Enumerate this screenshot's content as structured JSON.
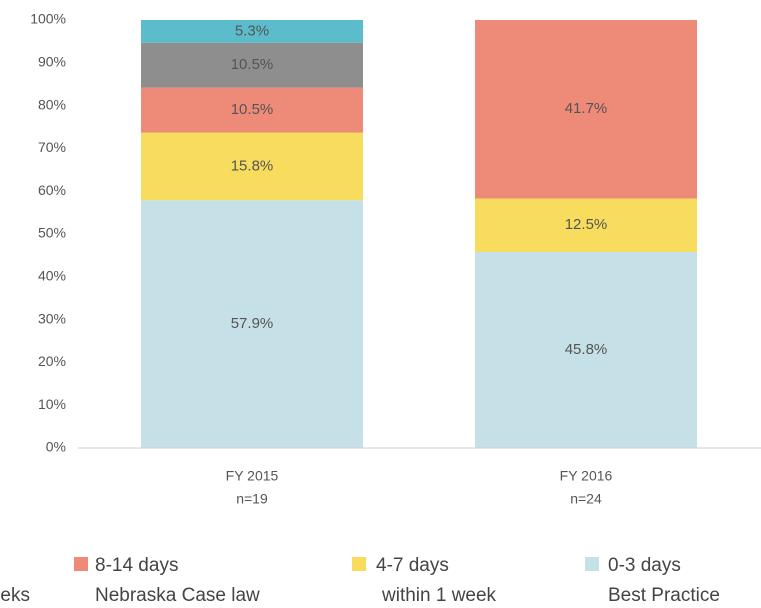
{
  "chart_data": {
    "type": "stacked_bar",
    "categories": [
      "FY 2015",
      "FY 2016"
    ],
    "category_notes": [
      "n=19",
      "n=24"
    ],
    "ylim": [
      0,
      100
    ],
    "yticks": [
      {
        "value": 0,
        "label": "0%"
      },
      {
        "value": 10,
        "label": "10%"
      },
      {
        "value": 20,
        "label": "20%"
      },
      {
        "value": 30,
        "label": "30%"
      },
      {
        "value": 40,
        "label": "40%"
      },
      {
        "value": 50,
        "label": "50%"
      },
      {
        "value": 60,
        "label": "60%"
      },
      {
        "value": 70,
        "label": "70%"
      },
      {
        "value": 80,
        "label": "80%"
      },
      {
        "value": 90,
        "label": "90%"
      },
      {
        "value": 100,
        "label": "100%"
      }
    ],
    "series": [
      {
        "name": "0-3 days",
        "note": "Best Practice",
        "color": "#c6e0e7",
        "values": [
          57.9,
          45.8
        ],
        "value_labels": [
          "57.9%",
          "45.8%"
        ]
      },
      {
        "name": "4-7 days",
        "note": "within 1 week",
        "color": "#f7dc5e",
        "values": [
          15.8,
          12.5
        ],
        "value_labels": [
          "15.8%",
          "12.5%"
        ]
      },
      {
        "name": "8-14 days",
        "note": "Nebraska Case law",
        "color": "#ee8a78",
        "values": [
          10.5,
          41.7
        ],
        "value_labels": [
          "10.5%",
          "41.7%"
        ]
      },
      {
        "note": "eks",
        "color": "#8e8e8e",
        "values": [
          10.5,
          null
        ],
        "value_labels": [
          "10.5%",
          null
        ]
      },
      {
        "color": "#5bbccb",
        "values": [
          5.3,
          null
        ],
        "value_labels": [
          "5.3%",
          null
        ]
      }
    ]
  }
}
